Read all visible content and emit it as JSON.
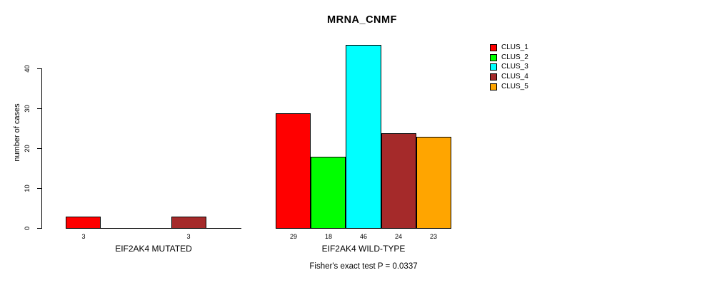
{
  "chart_data": {
    "type": "bar",
    "title": "MRNA_CNMF",
    "ylabel": "number of cases",
    "xlabel": "",
    "footnote": "Fisher's exact test P = 0.0337",
    "ylim": [
      0,
      46
    ],
    "yticks": [
      0,
      10,
      20,
      30,
      40
    ],
    "grid": false,
    "legend_position": "right",
    "clusters": [
      {
        "name": "CLUS_1",
        "color": "#FF0000"
      },
      {
        "name": "CLUS_2",
        "color": "#00FF00"
      },
      {
        "name": "CLUS_3",
        "color": "#00FFFF"
      },
      {
        "name": "CLUS_4",
        "color": "#A52A2A"
      },
      {
        "name": "CLUS_5",
        "color": "#FFA500"
      }
    ],
    "groups": [
      {
        "label": "EIF2AK4 MUTATED",
        "values": [
          3,
          0,
          0,
          3,
          0
        ],
        "shown_labels": [
          "3",
          "",
          "",
          "3",
          ""
        ]
      },
      {
        "label": "EIF2AK4 WILD-TYPE",
        "values": [
          29,
          18,
          46,
          24,
          23
        ],
        "shown_labels": [
          "29",
          "18",
          "46",
          "24",
          "23"
        ]
      }
    ]
  }
}
